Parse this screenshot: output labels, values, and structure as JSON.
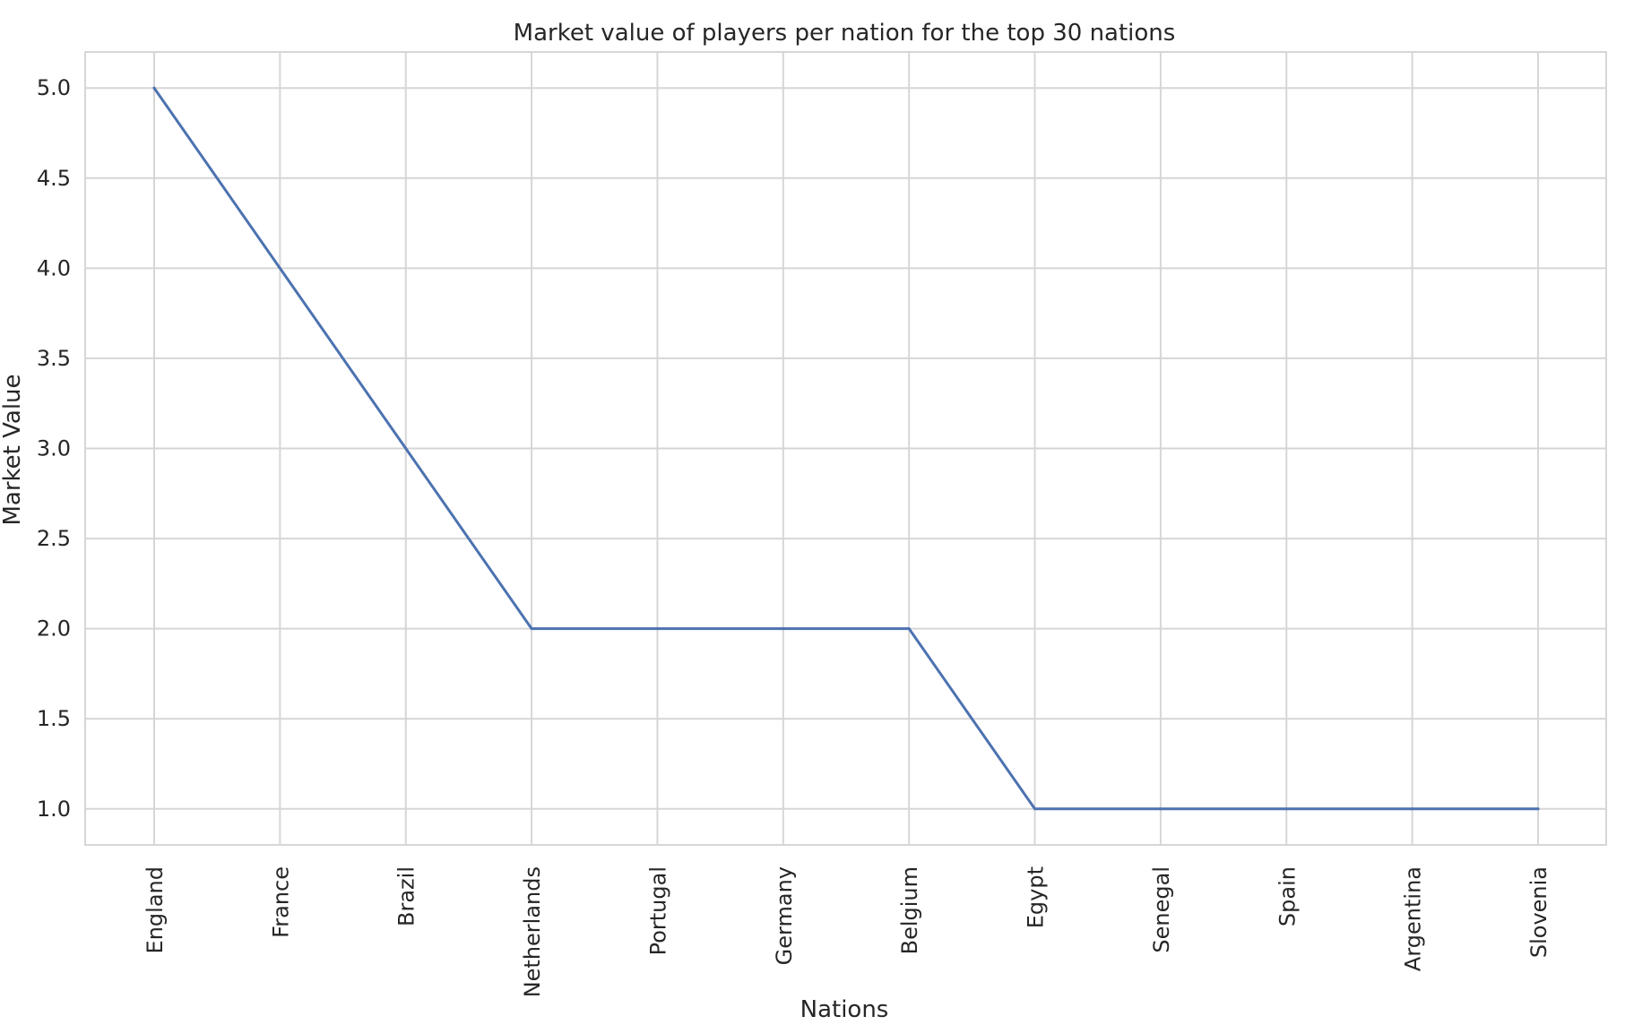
{
  "chart_data": {
    "type": "line",
    "title": "Market value of players per nation for the top 30 nations",
    "xlabel": "Nations",
    "ylabel": "Market Value",
    "categories": [
      "England",
      "France",
      "Brazil",
      "Netherlands",
      "Portugal",
      "Germany",
      "Belgium",
      "Egypt",
      "Senegal",
      "Spain",
      "Argentina",
      "Slovenia"
    ],
    "series": [
      {
        "values": [
          5,
          4,
          3,
          2,
          2,
          2,
          2,
          1,
          1,
          1,
          1,
          1
        ]
      }
    ],
    "ylim": [
      0.8,
      5.2
    ],
    "yticks": [
      "1.0",
      "1.5",
      "2.0",
      "2.5",
      "3.0",
      "3.5",
      "4.0",
      "4.5",
      "5.0"
    ],
    "grid": true,
    "legend": "none",
    "colors": {
      "line": "#4c72b0",
      "grid": "#d6d6d6",
      "frame": "#d6d6d6"
    }
  }
}
